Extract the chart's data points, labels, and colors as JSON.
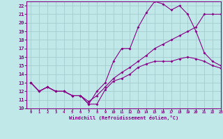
{
  "xlabel": "Windchill (Refroidissement éolien,°C)",
  "xlim": [
    -0.5,
    23
  ],
  "ylim": [
    10,
    22.5
  ],
  "xticks": [
    0,
    1,
    2,
    3,
    4,
    5,
    6,
    7,
    8,
    9,
    10,
    11,
    12,
    13,
    14,
    15,
    16,
    17,
    18,
    19,
    20,
    21,
    22,
    23
  ],
  "yticks": [
    10,
    11,
    12,
    13,
    14,
    15,
    16,
    17,
    18,
    19,
    20,
    21,
    22
  ],
  "line_color": "#880088",
  "bg_color": "#c0e8e8",
  "grid_color": "#a0c8cc",
  "line1_x": [
    0,
    1,
    2,
    3,
    4,
    5,
    6,
    7,
    8,
    9,
    10,
    11,
    12,
    13,
    14,
    15,
    16,
    17,
    18,
    19,
    20,
    21,
    22,
    23
  ],
  "line1_y": [
    13,
    12,
    12.5,
    12,
    12,
    11.5,
    11.5,
    10.5,
    10.5,
    12.2,
    13.2,
    13.5,
    14,
    14.8,
    15.2,
    15.5,
    15.5,
    15.5,
    15.8,
    16,
    15.8,
    15.5,
    15,
    14.7
  ],
  "line2_x": [
    0,
    1,
    2,
    3,
    4,
    5,
    6,
    7,
    8,
    9,
    10,
    11,
    12,
    13,
    14,
    15,
    16,
    17,
    18,
    19,
    20,
    21,
    22,
    23
  ],
  "line2_y": [
    13,
    12,
    12.5,
    12,
    12,
    11.5,
    11.5,
    10.5,
    12,
    13,
    15.5,
    17,
    17,
    19.5,
    21.2,
    22.5,
    22.2,
    21.5,
    22,
    21,
    19,
    16.5,
    15.5,
    15
  ],
  "line3_x": [
    0,
    1,
    2,
    3,
    4,
    5,
    6,
    7,
    8,
    9,
    10,
    11,
    12,
    13,
    14,
    15,
    16,
    17,
    18,
    19,
    20,
    21,
    22,
    23
  ],
  "line3_y": [
    13,
    12,
    12.5,
    12,
    12,
    11.5,
    11.5,
    10.8,
    11.5,
    12.5,
    13.5,
    14.2,
    14.8,
    15.5,
    16.2,
    17,
    17.5,
    18,
    18.5,
    19,
    19.5,
    21,
    21,
    21
  ],
  "markersize": 2,
  "linewidth": 0.8
}
